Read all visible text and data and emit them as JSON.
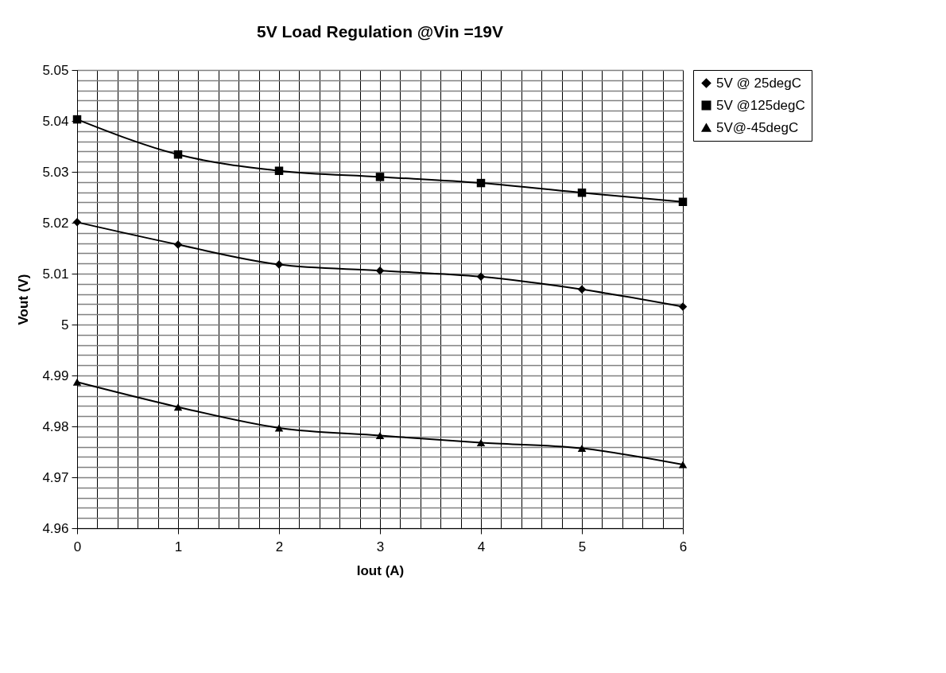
{
  "chart_data": {
    "type": "line",
    "title": "5V Load Regulation @Vin =19V",
    "xlabel": "Iout (A)",
    "ylabel": "Vout (V)",
    "x": [
      0,
      1,
      2,
      3,
      4,
      5,
      6
    ],
    "series": [
      {
        "name": "5V @ 25degC",
        "color": "#000000",
        "marker": "diamond",
        "values": [
          5.0201,
          5.0157,
          5.0118,
          5.0106,
          5.0094,
          5.0069,
          5.0035
        ]
      },
      {
        "name": "5V @125degC",
        "color": "#000000",
        "marker": "square",
        "values": [
          5.0403,
          5.0334,
          5.0302,
          5.029,
          5.0278,
          5.0259,
          5.0241
        ]
      },
      {
        "name": "5V@-45degC",
        "color": "#000000",
        "marker": "triangle",
        "values": [
          4.9887,
          4.9838,
          4.9797,
          4.9782,
          4.9768,
          4.9757,
          4.9725
        ]
      }
    ],
    "xlim": [
      0,
      6
    ],
    "ylim": [
      4.96,
      5.05
    ],
    "xticks": [
      0,
      {
        "value": 0.2,
        "label": null
      },
      {
        "value": 0.4,
        "label": null
      },
      {
        "value": 0.6,
        "label": null
      },
      {
        "value": 0.8,
        "label": null
      },
      1,
      {
        "value": 1.2,
        "label": null
      },
      {
        "value": 1.4,
        "label": null
      },
      {
        "value": 1.6,
        "label": null
      },
      {
        "value": 1.8,
        "label": null
      },
      2,
      {
        "value": 2.2,
        "label": null
      },
      {
        "value": 2.4,
        "label": null
      },
      {
        "value": 2.6,
        "label": null
      },
      {
        "value": 2.8,
        "label": null
      },
      3,
      {
        "value": 3.2,
        "label": null
      },
      {
        "value": 3.4,
        "label": null
      },
      {
        "value": 3.6,
        "label": null
      },
      {
        "value": 3.8,
        "label": null
      },
      4,
      {
        "value": 4.2,
        "label": null
      },
      {
        "value": 4.4,
        "label": null
      },
      {
        "value": 4.6,
        "label": null
      },
      {
        "value": 4.8,
        "label": null
      },
      5,
      {
        "value": 5.2,
        "label": null
      },
      {
        "value": 5.4,
        "label": null
      },
      {
        "value": 5.6,
        "label": null
      },
      {
        "value": 5.8,
        "label": null
      },
      6
    ],
    "yticks": [
      4.96,
      {
        "value": 4.962,
        "label": null
      },
      {
        "value": 4.964,
        "label": null
      },
      {
        "value": 4.966,
        "label": null
      },
      {
        "value": 4.968,
        "label": null
      },
      4.97,
      {
        "value": 4.972,
        "label": null
      },
      {
        "value": 4.974,
        "label": null
      },
      {
        "value": 4.976,
        "label": null
      },
      {
        "value": 4.978,
        "label": null
      },
      4.98,
      {
        "value": 4.982,
        "label": null
      },
      {
        "value": 4.984,
        "label": null
      },
      {
        "value": 4.986,
        "label": null
      },
      {
        "value": 4.988,
        "label": null
      },
      4.99,
      {
        "value": 4.992,
        "label": null
      },
      {
        "value": 4.994,
        "label": null
      },
      {
        "value": 4.996,
        "label": null
      },
      {
        "value": 4.998,
        "label": null
      },
      5,
      {
        "value": 5.002,
        "label": null
      },
      {
        "value": 5.004,
        "label": null
      },
      {
        "value": 5.006,
        "label": null
      },
      {
        "value": 5.008,
        "label": null
      },
      5.01,
      {
        "value": 5.012,
        "label": null
      },
      {
        "value": 5.014,
        "label": null
      },
      {
        "value": 5.016,
        "label": null
      },
      {
        "value": 5.018,
        "label": null
      },
      5.02,
      {
        "value": 5.022,
        "label": null
      },
      {
        "value": 5.024,
        "label": null
      },
      {
        "value": 5.026,
        "label": null
      },
      {
        "value": 5.028,
        "label": null
      },
      5.03,
      {
        "value": 5.032,
        "label": null
      },
      {
        "value": 5.034,
        "label": null
      },
      {
        "value": 5.036,
        "label": null
      },
      {
        "value": 5.038,
        "label": null
      },
      5.04,
      {
        "value": 5.042,
        "label": null
      },
      {
        "value": 5.044,
        "label": null
      },
      {
        "value": 5.046,
        "label": null
      },
      {
        "value": 5.048,
        "label": null
      },
      5.05
    ],
    "grid": true,
    "legend": "right",
    "line_style": "solid"
  }
}
